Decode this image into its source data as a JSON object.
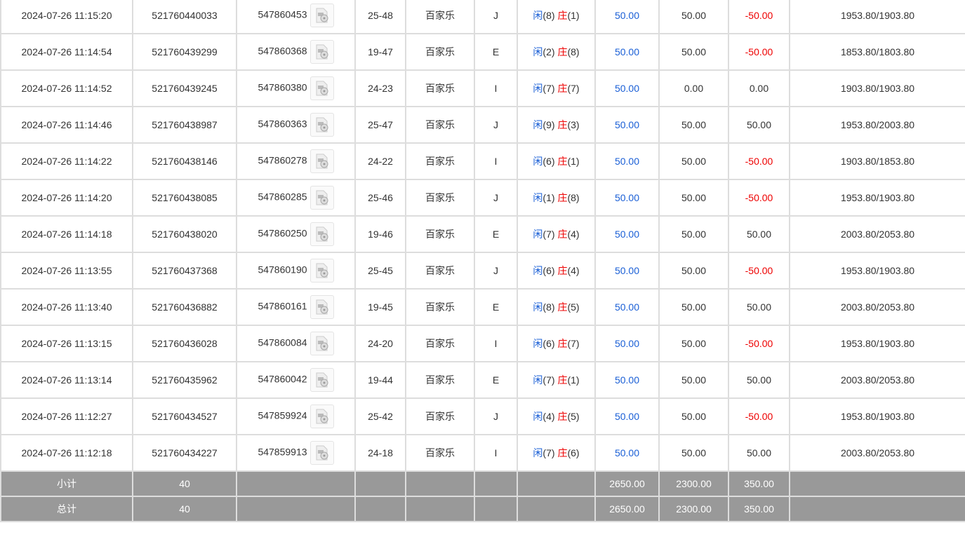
{
  "colors": {
    "player": "#1a5fd6",
    "banker": "#e00000",
    "negative": "#e00000",
    "summary_bg": "#999999"
  },
  "labels": {
    "player": "闲",
    "banker": "庄"
  },
  "rows": [
    {
      "time": "2024-07-26 11:15:20",
      "bet_id": "521760440033",
      "round_id": "547860453",
      "table": "25-48",
      "game": "百家乐",
      "code": "J",
      "p": "8",
      "b": "1",
      "bet": "50.00",
      "valid": "50.00",
      "win": "-50.00",
      "balance": "1953.80/1903.80"
    },
    {
      "time": "2024-07-26 11:14:54",
      "bet_id": "521760439299",
      "round_id": "547860368",
      "table": "19-47",
      "game": "百家乐",
      "code": "E",
      "p": "2",
      "b": "8",
      "bet": "50.00",
      "valid": "50.00",
      "win": "-50.00",
      "balance": "1853.80/1803.80"
    },
    {
      "time": "2024-07-26 11:14:52",
      "bet_id": "521760439245",
      "round_id": "547860380",
      "table": "24-23",
      "game": "百家乐",
      "code": "I",
      "p": "7",
      "b": "7",
      "bet": "50.00",
      "valid": "0.00",
      "win": "0.00",
      "balance": "1903.80/1903.80"
    },
    {
      "time": "2024-07-26 11:14:46",
      "bet_id": "521760438987",
      "round_id": "547860363",
      "table": "25-47",
      "game": "百家乐",
      "code": "J",
      "p": "9",
      "b": "3",
      "bet": "50.00",
      "valid": "50.00",
      "win": "50.00",
      "balance": "1953.80/2003.80"
    },
    {
      "time": "2024-07-26 11:14:22",
      "bet_id": "521760438146",
      "round_id": "547860278",
      "table": "24-22",
      "game": "百家乐",
      "code": "I",
      "p": "6",
      "b": "1",
      "bet": "50.00",
      "valid": "50.00",
      "win": "-50.00",
      "balance": "1903.80/1853.80"
    },
    {
      "time": "2024-07-26 11:14:20",
      "bet_id": "521760438085",
      "round_id": "547860285",
      "table": "25-46",
      "game": "百家乐",
      "code": "J",
      "p": "1",
      "b": "8",
      "bet": "50.00",
      "valid": "50.00",
      "win": "-50.00",
      "balance": "1953.80/1903.80"
    },
    {
      "time": "2024-07-26 11:14:18",
      "bet_id": "521760438020",
      "round_id": "547860250",
      "table": "19-46",
      "game": "百家乐",
      "code": "E",
      "p": "7",
      "b": "4",
      "bet": "50.00",
      "valid": "50.00",
      "win": "50.00",
      "balance": "2003.80/2053.80"
    },
    {
      "time": "2024-07-26 11:13:55",
      "bet_id": "521760437368",
      "round_id": "547860190",
      "table": "25-45",
      "game": "百家乐",
      "code": "J",
      "p": "6",
      "b": "4",
      "bet": "50.00",
      "valid": "50.00",
      "win": "-50.00",
      "balance": "1953.80/1903.80"
    },
    {
      "time": "2024-07-26 11:13:40",
      "bet_id": "521760436882",
      "round_id": "547860161",
      "table": "19-45",
      "game": "百家乐",
      "code": "E",
      "p": "8",
      "b": "5",
      "bet": "50.00",
      "valid": "50.00",
      "win": "50.00",
      "balance": "2003.80/2053.80"
    },
    {
      "time": "2024-07-26 11:13:15",
      "bet_id": "521760436028",
      "round_id": "547860084",
      "table": "24-20",
      "game": "百家乐",
      "code": "I",
      "p": "6",
      "b": "7",
      "bet": "50.00",
      "valid": "50.00",
      "win": "-50.00",
      "balance": "1953.80/1903.80"
    },
    {
      "time": "2024-07-26 11:13:14",
      "bet_id": "521760435962",
      "round_id": "547860042",
      "table": "19-44",
      "game": "百家乐",
      "code": "E",
      "p": "7",
      "b": "1",
      "bet": "50.00",
      "valid": "50.00",
      "win": "50.00",
      "balance": "2003.80/2053.80"
    },
    {
      "time": "2024-07-26 11:12:27",
      "bet_id": "521760434527",
      "round_id": "547859924",
      "table": "25-42",
      "game": "百家乐",
      "code": "J",
      "p": "4",
      "b": "5",
      "bet": "50.00",
      "valid": "50.00",
      "win": "-50.00",
      "balance": "1953.80/1903.80"
    },
    {
      "time": "2024-07-26 11:12:18",
      "bet_id": "521760434227",
      "round_id": "547859913",
      "table": "24-18",
      "game": "百家乐",
      "code": "I",
      "p": "7",
      "b": "6",
      "bet": "50.00",
      "valid": "50.00",
      "win": "50.00",
      "balance": "2003.80/2053.80"
    }
  ],
  "summary": [
    {
      "label": "小计",
      "count": "40",
      "bet": "2650.00",
      "valid": "2300.00",
      "win": "350.00"
    },
    {
      "label": "总计",
      "count": "40",
      "bet": "2650.00",
      "valid": "2300.00",
      "win": "350.00"
    }
  ]
}
